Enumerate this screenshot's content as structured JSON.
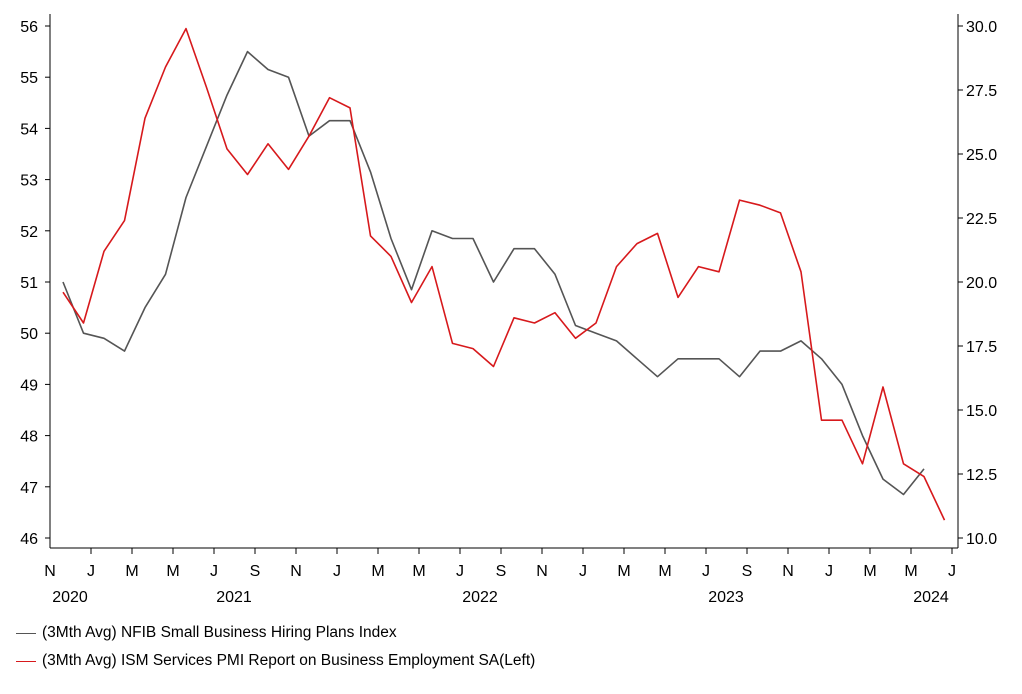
{
  "chart_data": {
    "type": "line",
    "x_axis": {
      "month_letters": [
        "N",
        "J",
        "M",
        "M",
        "J",
        "S",
        "N",
        "J",
        "M",
        "M",
        "J",
        "S",
        "N",
        "J",
        "M",
        "M",
        "J",
        "S",
        "N",
        "J",
        "M",
        "M",
        "J"
      ],
      "year_labels": [
        {
          "label": "2020",
          "tick_index": 0
        },
        {
          "label": "2021",
          "tick_index": 4
        },
        {
          "label": "2022",
          "tick_index": 10
        },
        {
          "label": "2023",
          "tick_index": 16
        },
        {
          "label": "2024",
          "tick_index": 21
        }
      ],
      "range": [
        "2020-11",
        "2024-07"
      ]
    },
    "y_left": {
      "ticks": [
        "56",
        "55",
        "54",
        "53",
        "52",
        "51",
        "50",
        "49",
        "48",
        "47",
        "46"
      ],
      "range": [
        46,
        56
      ]
    },
    "y_right": {
      "ticks": [
        "30.0",
        "27.5",
        "25.0",
        "22.5",
        "20.0",
        "17.5",
        "15.0",
        "12.5",
        "10.0"
      ],
      "range": [
        10,
        30
      ]
    },
    "series": [
      {
        "name": "(3Mth Avg) NFIB Small Business Hiring Plans Index",
        "color": "#555555",
        "axis": "right",
        "points": [
          [
            "2020-11",
            20.0
          ],
          [
            "2020-12",
            18.0
          ],
          [
            "2021-01",
            17.8
          ],
          [
            "2021-02",
            17.3
          ],
          [
            "2021-03",
            19.0
          ],
          [
            "2021-04",
            20.3
          ],
          [
            "2021-05",
            23.3
          ],
          [
            "2021-06",
            25.3
          ],
          [
            "2021-07",
            27.3
          ],
          [
            "2021-08",
            29.0
          ],
          [
            "2021-09",
            28.3
          ],
          [
            "2021-10",
            28.0
          ],
          [
            "2021-11",
            25.7
          ],
          [
            "2021-12",
            26.3
          ],
          [
            "2022-01",
            26.3
          ],
          [
            "2022-02",
            24.3
          ],
          [
            "2022-03",
            21.7
          ],
          [
            "2022-04",
            19.7
          ],
          [
            "2022-05",
            22.0
          ],
          [
            "2022-06",
            21.7
          ],
          [
            "2022-07",
            21.7
          ],
          [
            "2022-08",
            20.0
          ],
          [
            "2022-09",
            21.3
          ],
          [
            "2022-10",
            21.3
          ],
          [
            "2022-11",
            20.3
          ],
          [
            "2022-12",
            18.3
          ],
          [
            "2023-01",
            18.0
          ],
          [
            "2023-02",
            17.7
          ],
          [
            "2023-03",
            17.0
          ],
          [
            "2023-04",
            16.3
          ],
          [
            "2023-05",
            17.0
          ],
          [
            "2023-06",
            17.0
          ],
          [
            "2023-07",
            17.0
          ],
          [
            "2023-08",
            16.3
          ],
          [
            "2023-09",
            17.3
          ],
          [
            "2023-10",
            17.3
          ],
          [
            "2023-11",
            17.7
          ],
          [
            "2023-12",
            17.0
          ],
          [
            "2024-01",
            16.0
          ],
          [
            "2024-02",
            14.0
          ],
          [
            "2024-03",
            12.3
          ],
          [
            "2024-04",
            11.7
          ],
          [
            "2024-05",
            12.7
          ]
        ]
      },
      {
        "name": "(3Mth Avg) ISM Services PMI Report on Business Employment SA(Left)",
        "color": "#d7191c",
        "axis": "left",
        "points": [
          [
            "2020-11",
            50.8
          ],
          [
            "2020-12",
            50.2
          ],
          [
            "2021-01",
            51.6
          ],
          [
            "2021-02",
            52.2
          ],
          [
            "2021-03",
            54.2
          ],
          [
            "2021-04",
            55.2
          ],
          [
            "2021-05",
            55.95
          ],
          [
            "2021-06",
            54.8
          ],
          [
            "2021-07",
            53.6
          ],
          [
            "2021-08",
            53.1
          ],
          [
            "2021-09",
            53.7
          ],
          [
            "2021-10",
            53.2
          ],
          [
            "2021-11",
            53.85
          ],
          [
            "2021-12",
            54.6
          ],
          [
            "2022-01",
            54.4
          ],
          [
            "2022-02",
            51.9
          ],
          [
            "2022-03",
            51.5
          ],
          [
            "2022-04",
            50.6
          ],
          [
            "2022-05",
            51.3
          ],
          [
            "2022-06",
            49.8
          ],
          [
            "2022-07",
            49.7
          ],
          [
            "2022-08",
            49.35
          ],
          [
            "2022-09",
            50.3
          ],
          [
            "2022-10",
            50.2
          ],
          [
            "2022-11",
            50.4
          ],
          [
            "2022-12",
            49.9
          ],
          [
            "2023-01",
            50.2
          ],
          [
            "2023-02",
            51.3
          ],
          [
            "2023-03",
            51.75
          ],
          [
            "2023-04",
            51.95
          ],
          [
            "2023-05",
            50.7
          ],
          [
            "2023-06",
            51.3
          ],
          [
            "2023-07",
            51.2
          ],
          [
            "2023-08",
            52.6
          ],
          [
            "2023-09",
            52.5
          ],
          [
            "2023-10",
            52.35
          ],
          [
            "2023-11",
            51.2
          ],
          [
            "2023-12",
            48.3
          ],
          [
            "2024-01",
            48.3
          ],
          [
            "2024-02",
            47.45
          ],
          [
            "2024-03",
            48.95
          ],
          [
            "2024-04",
            47.45
          ],
          [
            "2024-05",
            47.2
          ],
          [
            "2024-06",
            46.35
          ]
        ]
      }
    ],
    "legend_position": "bottom-left",
    "grid": false
  }
}
